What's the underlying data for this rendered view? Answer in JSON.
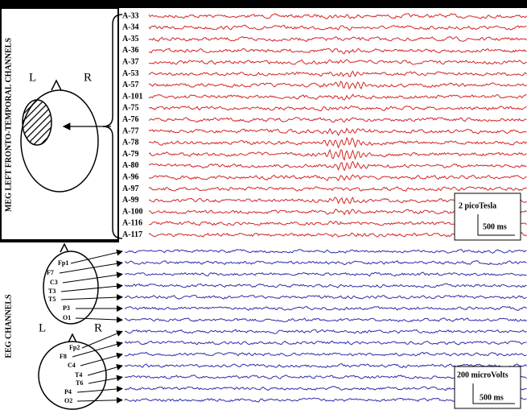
{
  "meg": {
    "section_label": "MEG LEFT FRONTO-TEMPORAL CHANNELS",
    "side_left": "L",
    "side_right": "R",
    "channels": [
      "A-33",
      "A-34",
      "A-35",
      "A-36",
      "A-37",
      "A-53",
      "A-57",
      "A-101",
      "A-75",
      "A-76",
      "A-77",
      "A-78",
      "A-79",
      "A-80",
      "A-96",
      "A-97",
      "A-99",
      "A-100",
      "A-116",
      "A-117"
    ],
    "scale": {
      "amplitude": "2 picoTesla",
      "time": "500 ms"
    }
  },
  "eeg": {
    "section_label": "EEG CHANNELS",
    "side_left": "L",
    "side_right": "R",
    "channels": [
      "Fp1",
      "F7",
      "C3",
      "T3",
      "T5",
      "P3",
      "O1",
      "Fp2",
      "F8",
      "C4",
      "T4",
      "T6",
      "P4",
      "O2"
    ],
    "scale": {
      "amplitude": "200 microVolts",
      "time": "500 ms"
    }
  }
}
